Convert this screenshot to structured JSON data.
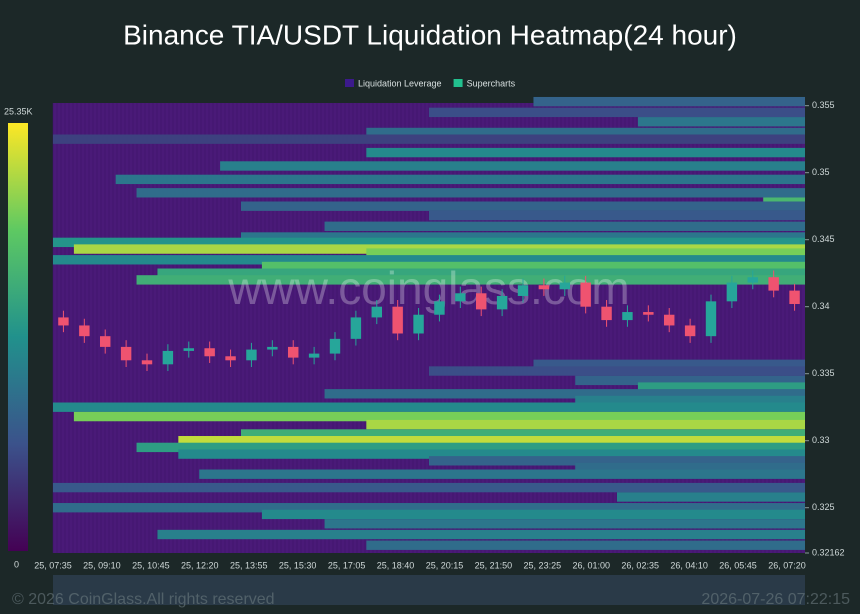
{
  "chart_data": {
    "type": "liquidation-heatmap",
    "title": "Binance TIA/USDT Liquidation Heatmap(24 hour)",
    "legend": [
      {
        "name": "Liquidation Leverage",
        "color": "#3c1a8c"
      },
      {
        "name": "Supercharts",
        "color": "#22c08e"
      }
    ],
    "watermark": "www.coinglass.com",
    "footer": "© 2026 CoinGlass.All rights reserved",
    "timestamp": "2026-07-26 07:22:15",
    "colorbar": {
      "max": {
        "value": 25350,
        "label": "25.35K"
      },
      "min": 0
    },
    "background": "#4a1a78",
    "categories": [
      "25, 07:35",
      "25, 09:10",
      "25, 10:45",
      "25, 12:20",
      "25, 13:55",
      "25, 15:30",
      "25, 17:05",
      "25, 18:40",
      "25, 20:15",
      "25, 21:50",
      "25, 23:25",
      "26, 01:00",
      "26, 02:35",
      "26, 04:10",
      "26, 05:45",
      "26, 07:20"
    ],
    "ylim": [
      0.32162,
      0.3552
    ],
    "yticks": [
      0.355,
      0.35,
      0.345,
      0.34,
      0.335,
      0.33,
      0.325,
      0.32162
    ],
    "candles": {
      "up_color": "#26a69a",
      "down_color": "#ef5370",
      "open": [
        0.3392,
        0.3386,
        0.3378,
        0.337,
        0.336,
        0.3357,
        0.3367,
        0.3369,
        0.3363,
        0.336,
        0.3368,
        0.337,
        0.3362,
        0.3365,
        0.3376,
        0.3392,
        0.34,
        0.338,
        0.3394,
        0.3404,
        0.341,
        0.3398,
        0.3408,
        0.3416,
        0.3413,
        0.3418,
        0.34,
        0.339,
        0.3396,
        0.3394,
        0.3386,
        0.3378,
        0.3404,
        0.3418,
        0.3422,
        0.3412
      ],
      "high": [
        0.3397,
        0.3391,
        0.3383,
        0.3375,
        0.3365,
        0.3372,
        0.3374,
        0.3374,
        0.3368,
        0.3373,
        0.3375,
        0.3375,
        0.337,
        0.3381,
        0.3397,
        0.3405,
        0.3405,
        0.3399,
        0.3409,
        0.3415,
        0.3415,
        0.3413,
        0.3421,
        0.3421,
        0.3423,
        0.3423,
        0.3405,
        0.3401,
        0.3401,
        0.3399,
        0.3391,
        0.3409,
        0.3423,
        0.3427,
        0.3427,
        0.3417
      ],
      "low": [
        0.3381,
        0.3373,
        0.3365,
        0.3355,
        0.3352,
        0.3352,
        0.3362,
        0.3358,
        0.3355,
        0.3355,
        0.3363,
        0.3357,
        0.3357,
        0.336,
        0.3371,
        0.3387,
        0.3375,
        0.3375,
        0.3389,
        0.3399,
        0.3393,
        0.3393,
        0.3403,
        0.3408,
        0.3408,
        0.3395,
        0.3385,
        0.3385,
        0.3389,
        0.3381,
        0.3373,
        0.3373,
        0.3399,
        0.3413,
        0.3407,
        0.3397
      ],
      "close": [
        0.3386,
        0.3378,
        0.337,
        0.336,
        0.3357,
        0.3367,
        0.3369,
        0.3363,
        0.336,
        0.3368,
        0.337,
        0.3362,
        0.3365,
        0.3376,
        0.3392,
        0.34,
        0.338,
        0.3394,
        0.3404,
        0.341,
        0.3398,
        0.3408,
        0.3416,
        0.3413,
        0.3418,
        0.34,
        0.339,
        0.3396,
        0.3394,
        0.3386,
        0.3378,
        0.3404,
        0.3418,
        0.3422,
        0.3412,
        0.3402
      ]
    },
    "bands": {
      "price": [
        0.3553,
        0.3545,
        0.3538,
        0.353,
        0.3525,
        0.3515,
        0.3505,
        0.3495,
        0.3485,
        0.3478,
        0.3475,
        0.3468,
        0.346,
        0.3452,
        0.3448,
        0.3443,
        0.344,
        0.3435,
        0.343,
        0.3425,
        0.342,
        0.3357,
        0.3352,
        0.3345,
        0.334,
        0.3335,
        0.333,
        0.3325,
        0.3318,
        0.3312,
        0.3305,
        0.33,
        0.3295,
        0.329,
        0.3285,
        0.328,
        0.3275,
        0.3265,
        0.3258,
        0.325,
        0.3245,
        0.3238,
        0.323,
        0.3222
      ],
      "start": [
        23,
        18,
        28,
        15,
        0,
        15,
        8,
        3,
        4,
        34,
        9,
        18,
        13,
        9,
        0,
        1,
        15,
        0,
        10,
        5,
        4,
        23,
        18,
        25,
        28,
        13,
        25,
        0,
        1,
        15,
        9,
        6,
        4,
        6,
        18,
        25,
        7,
        0,
        27,
        0,
        10,
        13,
        5,
        15
      ],
      "value": [
        8000,
        6000,
        10000,
        9000,
        5000,
        12000,
        11000,
        10000,
        9000,
        17000,
        8000,
        7000,
        9000,
        10000,
        13000,
        22000,
        20000,
        12000,
        18000,
        15000,
        16000,
        7000,
        6000,
        8000,
        14000,
        9000,
        11000,
        12000,
        20000,
        22000,
        16000,
        23000,
        14000,
        12000,
        8000,
        9000,
        10000,
        7000,
        11000,
        9000,
        12000,
        10000,
        11000,
        9000
      ]
    }
  }
}
